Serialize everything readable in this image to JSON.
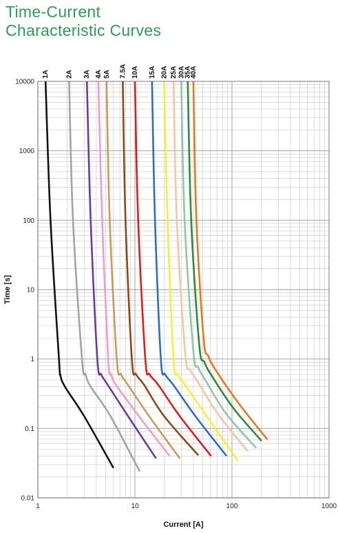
{
  "header": {
    "title_line1": "Time-Current",
    "title_line2": "Characteristic Curves"
  },
  "chart_data": {
    "type": "line",
    "title": "Time-Current Characteristic Curves",
    "xlabel": "Current [A]",
    "ylabel": "Time [s]",
    "x_scale": "log",
    "y_scale": "log",
    "xlim": [
      1,
      1000
    ],
    "ylim": [
      0.01,
      10000
    ],
    "x_ticks": [
      1,
      10,
      100,
      1000
    ],
    "x_tick_labels": [
      "1",
      "10",
      "100",
      "1000"
    ],
    "y_ticks": [
      0.01,
      0.1,
      1,
      10,
      100,
      1000,
      10000
    ],
    "y_tick_labels": [
      "0.01",
      "0.1",
      "1",
      "10",
      "100",
      "1000",
      "10000"
    ],
    "grid": true,
    "legend": "labels-at-top",
    "series": [
      {
        "name": "1A",
        "color": "#111111",
        "points": [
          [
            1.2,
            10000
          ],
          [
            1.35,
            100
          ],
          [
            1.65,
            1
          ],
          [
            1.7,
            0.6
          ],
          [
            1.9,
            0.4
          ],
          [
            3.0,
            0.15
          ],
          [
            6.0,
            0.027
          ]
        ]
      },
      {
        "name": "2A",
        "color": "#a3a3a3",
        "points": [
          [
            2.1,
            10000
          ],
          [
            2.3,
            100
          ],
          [
            2.85,
            1
          ],
          [
            3.1,
            0.6
          ],
          [
            3.5,
            0.4
          ],
          [
            5.6,
            0.15
          ],
          [
            11.2,
            0.024
          ]
        ]
      },
      {
        "name": "3A",
        "color": "#6a3aa0",
        "points": [
          [
            3.2,
            10000
          ],
          [
            3.5,
            100
          ],
          [
            4.1,
            1
          ],
          [
            4.5,
            0.6
          ],
          [
            5.1,
            0.45
          ],
          [
            8.5,
            0.15
          ],
          [
            16.5,
            0.037
          ]
        ]
      },
      {
        "name": "4A",
        "color": "#f29ccb",
        "points": [
          [
            4.2,
            10000
          ],
          [
            4.6,
            100
          ],
          [
            5.3,
            1
          ],
          [
            5.7,
            0.6
          ],
          [
            6.4,
            0.42
          ],
          [
            11.0,
            0.15
          ],
          [
            22.8,
            0.04
          ]
        ]
      },
      {
        "name": "5A",
        "color": "#c89a5c",
        "points": [
          [
            5.1,
            10000
          ],
          [
            5.5,
            100
          ],
          [
            6.5,
            1
          ],
          [
            7.2,
            0.6
          ],
          [
            8.5,
            0.42
          ],
          [
            14.0,
            0.15
          ],
          [
            29.0,
            0.037
          ]
        ]
      },
      {
        "name": "7.5A",
        "color": "#8b4a14",
        "points": [
          [
            7.5,
            10000
          ],
          [
            8.0,
            100
          ],
          [
            9.3,
            1
          ],
          [
            10.3,
            0.6
          ],
          [
            12.5,
            0.42
          ],
          [
            20.0,
            0.15
          ],
          [
            45.0,
            0.041
          ]
        ]
      },
      {
        "name": "10A",
        "color": "#d81e1e",
        "points": [
          [
            10.0,
            10000
          ],
          [
            10.8,
            100
          ],
          [
            12.8,
            1
          ],
          [
            14.2,
            0.6
          ],
          [
            17.5,
            0.42
          ],
          [
            29.0,
            0.15
          ],
          [
            61.0,
            0.04
          ]
        ]
      },
      {
        "name": "15A",
        "color": "#2f6fb8",
        "points": [
          [
            15.0,
            10000
          ],
          [
            16.1,
            100
          ],
          [
            18.5,
            1
          ],
          [
            20.5,
            0.6
          ],
          [
            25.0,
            0.42
          ],
          [
            42.0,
            0.15
          ],
          [
            88.0,
            0.04
          ]
        ]
      },
      {
        "name": "20A",
        "color": "#f5f03a",
        "points": [
          [
            20.0,
            10000
          ],
          [
            21.7,
            100
          ],
          [
            25.0,
            1
          ],
          [
            27.5,
            0.6
          ],
          [
            33.0,
            0.42
          ],
          [
            55.0,
            0.15
          ],
          [
            115.0,
            0.034
          ]
        ]
      },
      {
        "name": "25A",
        "color": "#f5c6a6",
        "points": [
          [
            25.0,
            10000
          ],
          [
            27.0,
            100
          ],
          [
            33.0,
            1.2
          ],
          [
            37.0,
            0.7
          ],
          [
            44.0,
            0.48
          ],
          [
            72.0,
            0.16
          ],
          [
            145.0,
            0.047
          ]
        ]
      },
      {
        "name": "30A",
        "color": "#93c6a3",
        "points": [
          [
            30.0,
            10000
          ],
          [
            32.5,
            100
          ],
          [
            40.0,
            1.3
          ],
          [
            45.0,
            0.75
          ],
          [
            53.0,
            0.5
          ],
          [
            88.0,
            0.16
          ],
          [
            178.0,
            0.052
          ]
        ]
      },
      {
        "name": "35A",
        "color": "#2d8a3e",
        "points": [
          [
            35.0,
            10000
          ],
          [
            38.0,
            100
          ],
          [
            46.0,
            1.6
          ],
          [
            52.0,
            0.9
          ],
          [
            62.0,
            0.57
          ],
          [
            105.0,
            0.19
          ],
          [
            202.0,
            0.066
          ]
        ]
      },
      {
        "name": "40A",
        "color": "#e6781e",
        "points": [
          [
            40.0,
            10000
          ],
          [
            43.0,
            100
          ],
          [
            51.0,
            2.0
          ],
          [
            57.0,
            1.1
          ],
          [
            70.0,
            0.65
          ],
          [
            120.0,
            0.22
          ],
          [
            232.0,
            0.069
          ]
        ]
      }
    ]
  }
}
